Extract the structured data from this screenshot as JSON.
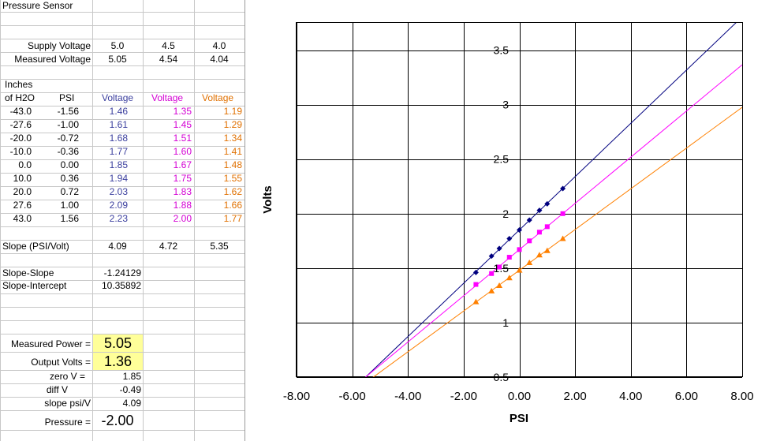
{
  "sheet": {
    "title": "Pressure Sensor",
    "supply_label": "Supply Voltage",
    "supply_values": [
      "5.0",
      "4.5",
      "4.0"
    ],
    "measured_label": "Measured Voltage",
    "measured_values": [
      "5.05",
      "4.54",
      "4.04"
    ],
    "header_inches_1": "Inches",
    "header_inches_2": "of H2O",
    "header_psi": "PSI",
    "header_voltage": "Voltage",
    "rows": [
      {
        "inches": "-43.0",
        "psi": "-1.56",
        "v1": "1.46",
        "v2": "1.35",
        "v3": "1.19"
      },
      {
        "inches": "-27.6",
        "psi": "-1.00",
        "v1": "1.61",
        "v2": "1.45",
        "v3": "1.29"
      },
      {
        "inches": "-20.0",
        "psi": "-0.72",
        "v1": "1.68",
        "v2": "1.51",
        "v3": "1.34"
      },
      {
        "inches": "-10.0",
        "psi": "-0.36",
        "v1": "1.77",
        "v2": "1.60",
        "v3": "1.41"
      },
      {
        "inches": "0.0",
        "psi": "0.00",
        "v1": "1.85",
        "v2": "1.67",
        "v3": "1.48"
      },
      {
        "inches": "10.0",
        "psi": "0.36",
        "v1": "1.94",
        "v2": "1.75",
        "v3": "1.55"
      },
      {
        "inches": "20.0",
        "psi": "0.72",
        "v1": "2.03",
        "v2": "1.83",
        "v3": "1.62"
      },
      {
        "inches": "27.6",
        "psi": "1.00",
        "v1": "2.09",
        "v2": "1.88",
        "v3": "1.66"
      },
      {
        "inches": "43.0",
        "psi": "1.56",
        "v1": "2.23",
        "v2": "2.00",
        "v3": "1.77"
      }
    ],
    "slope_label": "Slope (PSI/Volt)",
    "slope_values": [
      "4.09",
      "4.72",
      "5.35"
    ],
    "slope_slope_label": "Slope-Slope",
    "slope_slope_value": "-1.24129",
    "slope_intercept_label": "Slope-Intercept",
    "slope_intercept_value": "10.35892",
    "measured_power_label": "Measured Power =",
    "measured_power_value": "5.05",
    "output_volts_label": "Output Volts =",
    "output_volts_value": "1.36",
    "zero_v_label": "zero V =",
    "zero_v_value": "1.85",
    "diff_v_label": "diff V",
    "diff_v_value": "-0.49",
    "slope_psiv_label": "slope psi/V",
    "slope_psiv_value": "4.09",
    "pressure_label": "Pressure =",
    "pressure_value": "-2.00",
    "highlight_color": "#ffff99"
  },
  "chart_data": {
    "type": "scatter",
    "xlabel": "PSI",
    "ylabel": "Volts",
    "xlim": [
      -8,
      8
    ],
    "ylim": [
      0.5,
      3.75
    ],
    "x_ticks": [
      "-8.00",
      "-6.00",
      "-4.00",
      "-2.00",
      "0.00",
      "2.00",
      "4.00",
      "6.00",
      "8.00"
    ],
    "y_ticks": [
      "0.5",
      "1",
      "1.5",
      "2",
      "2.5",
      "3",
      "3.5"
    ],
    "x_tick_values": [
      -8,
      -6,
      -4,
      -2,
      0,
      2,
      4,
      6,
      8
    ],
    "y_tick_values": [
      0.5,
      1,
      1.5,
      2,
      2.5,
      3,
      3.5
    ],
    "grid": true,
    "x": [
      -1.56,
      -1.0,
      -0.72,
      -0.36,
      0.0,
      0.36,
      0.72,
      1.0,
      1.56
    ],
    "series": [
      {
        "color": "#00007f",
        "marker": "diamond",
        "values": [
          1.46,
          1.61,
          1.68,
          1.77,
          1.85,
          1.94,
          2.03,
          2.09,
          2.23
        ],
        "trend_slope": 0.2445,
        "trend_intercept": 1.85
      },
      {
        "color": "#ff00ff",
        "marker": "square",
        "values": [
          1.35,
          1.45,
          1.51,
          1.6,
          1.67,
          1.75,
          1.83,
          1.88,
          2.0
        ],
        "trend_slope": 0.2119,
        "trend_intercept": 1.67
      },
      {
        "color": "#ff8000",
        "marker": "triangle",
        "values": [
          1.19,
          1.29,
          1.34,
          1.41,
          1.48,
          1.55,
          1.62,
          1.66,
          1.77
        ],
        "trend_slope": 0.1869,
        "trend_intercept": 1.48
      }
    ]
  }
}
